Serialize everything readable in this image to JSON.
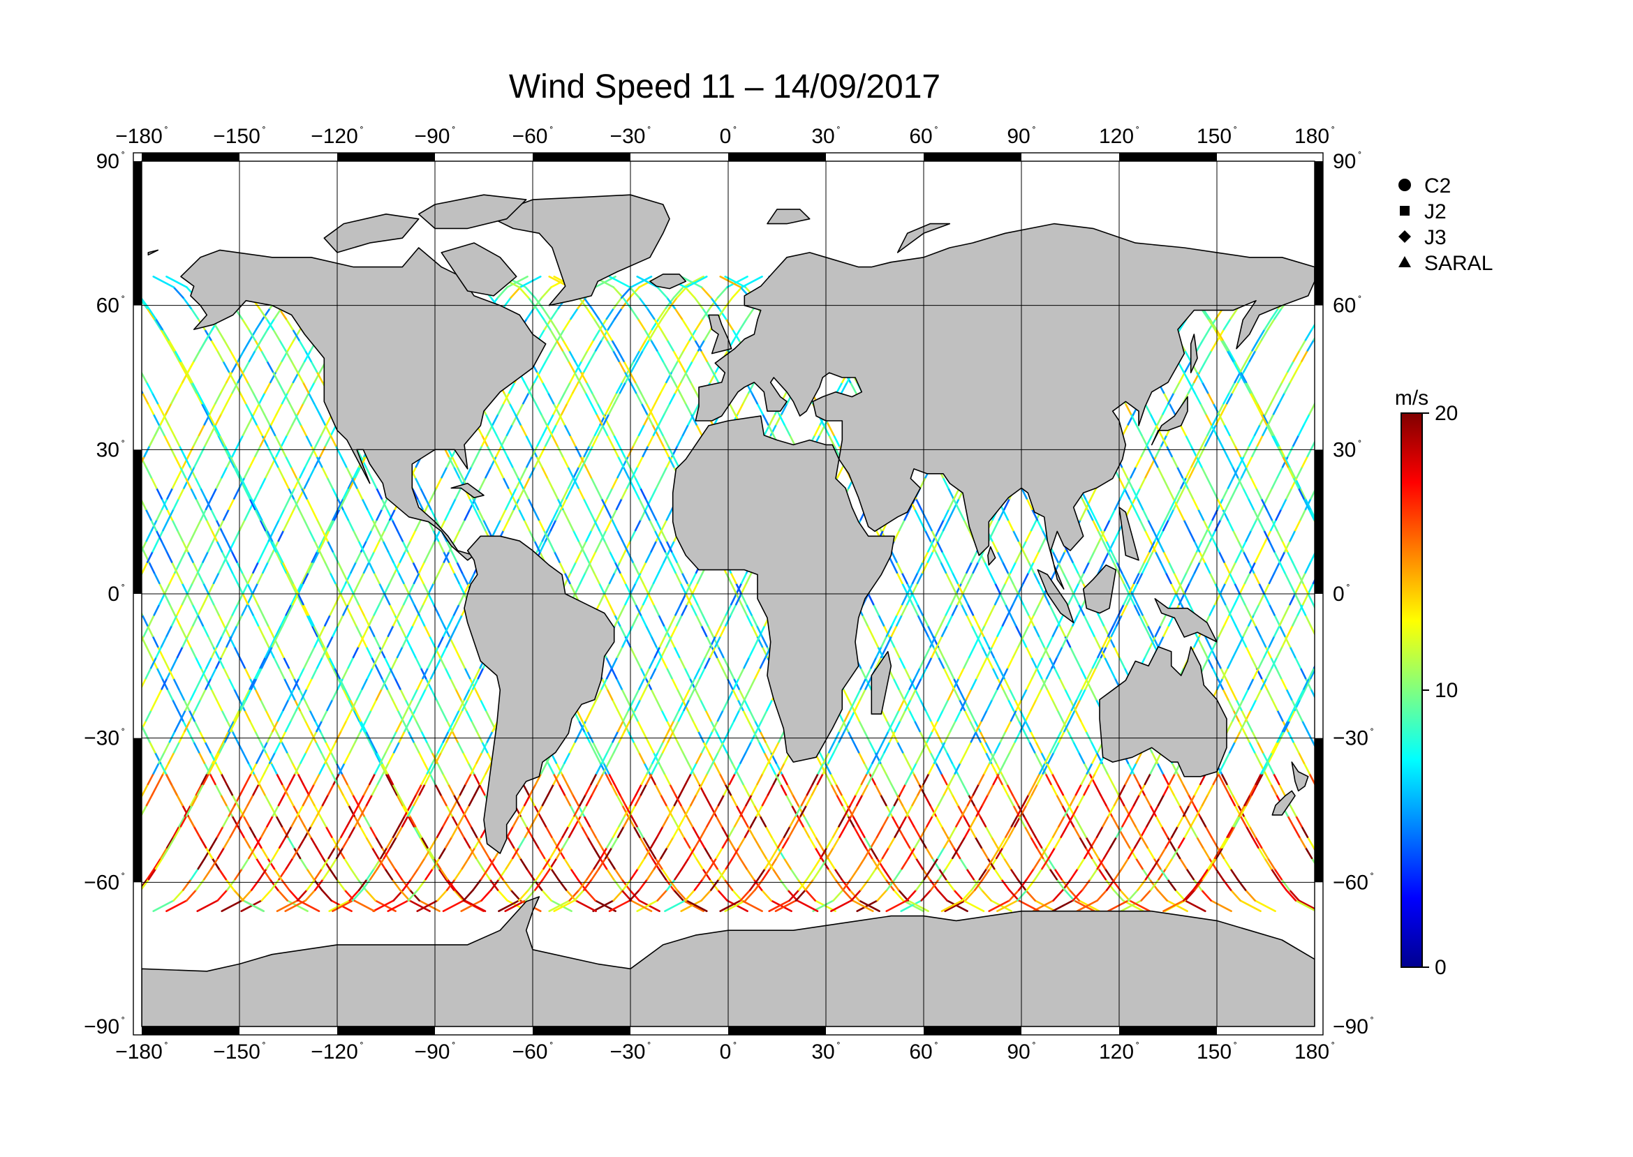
{
  "title": "Wind Speed 11 – 14/09/2017",
  "map": {
    "lon_range": [
      -180,
      180
    ],
    "lat_range": [
      -90,
      90
    ],
    "lon_ticks": [
      -180,
      -150,
      -120,
      -90,
      -60,
      -30,
      0,
      30,
      60,
      90,
      120,
      150,
      180
    ],
    "lat_ticks": [
      90,
      60,
      30,
      0,
      -30,
      -60,
      -90
    ],
    "lon_tick_labels": [
      "−180",
      "−150",
      "−120",
      "−90",
      "−60",
      "−30",
      "0",
      "30",
      "60",
      "90",
      "120",
      "150",
      "180"
    ],
    "lat_tick_labels": [
      "90",
      "60",
      "30",
      "0",
      "−30",
      "−60",
      "−90"
    ],
    "degree_symbol": "˚",
    "grid": true,
    "land_color": "#c0c0c0",
    "ocean_color": "#ffffff",
    "frame": "alternating black/white bars every 30°"
  },
  "legend": {
    "placement": "top-right",
    "items": [
      {
        "symbol": "circle",
        "label": "C2"
      },
      {
        "symbol": "square",
        "label": "J2"
      },
      {
        "symbol": "diamond",
        "label": "J3"
      },
      {
        "symbol": "triangle",
        "label": "SARAL"
      }
    ]
  },
  "colorbar": {
    "unit": "m/s",
    "min": 0,
    "max": 20,
    "tick_labels": [
      "20",
      "10",
      "0"
    ],
    "tick_values": [
      20,
      10,
      0
    ],
    "colormap": [
      "#00008f",
      "#0000ff",
      "#0080ff",
      "#00ffff",
      "#80ff80",
      "#ffff00",
      "#ff8000",
      "#ff0000",
      "#800000"
    ]
  },
  "tracks": {
    "description_units": "satellite ground tracks, colored by wind speed (m/s)",
    "lat_limit_north": 66,
    "lat_limit_south": -66,
    "colors": {
      "low": "#0a2ad8",
      "mid": "#10c8e8",
      "high": "#90f060",
      "vhigh": "#ffd000",
      "max": "#e82000"
    }
  }
}
